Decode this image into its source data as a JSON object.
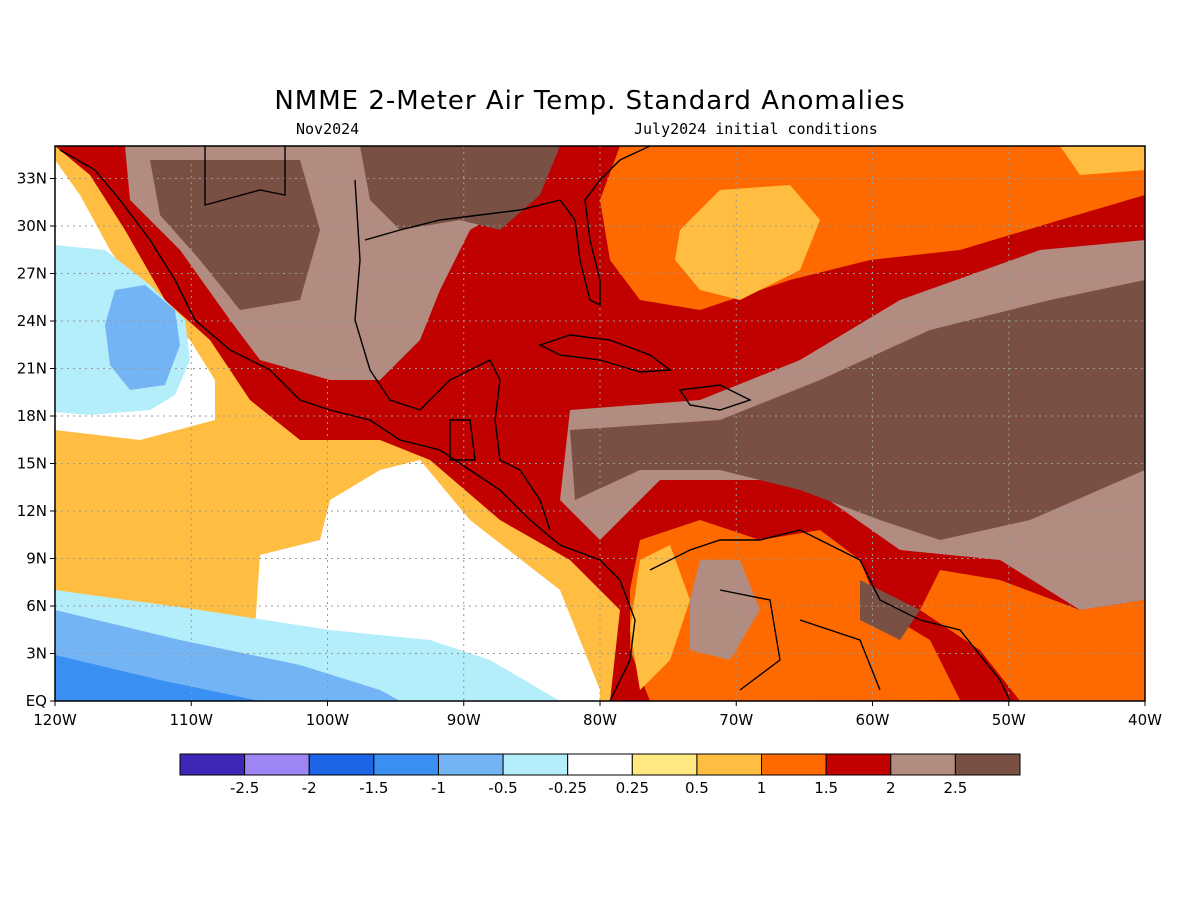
{
  "title": "NMME 2-Meter Air Temp. Standard Anomalies",
  "valid_month": "Nov2024",
  "initial_conditions": "July2024 initial conditions",
  "lat_ticks": [
    "EQ",
    "3N",
    "6N",
    "9N",
    "12N",
    "15N",
    "18N",
    "21N",
    "24N",
    "27N",
    "30N",
    "33N"
  ],
  "lon_ticks": [
    "120W",
    "110W",
    "100W",
    "90W",
    "80W",
    "70W",
    "60W",
    "50W",
    "40W"
  ],
  "colorbar": {
    "labels": [
      "-2.5",
      "-2",
      "-1.5",
      "-1",
      "-0.5",
      "-0.25",
      "0.25",
      "0.5",
      "1",
      "1.5",
      "2",
      "2.5"
    ],
    "colors": [
      "#3c27b8",
      "#9d86f3",
      "#1e64e6",
      "#3a8ff2",
      "#73b4f5",
      "#b4eefa",
      "#ffffff",
      "#ffe880",
      "#ffbe41",
      "#ff6a00",
      "#c10000",
      "#b28b81",
      "#7a5045"
    ]
  },
  "colors": {
    "land_outline": "#000000",
    "grid": "#999999"
  }
}
